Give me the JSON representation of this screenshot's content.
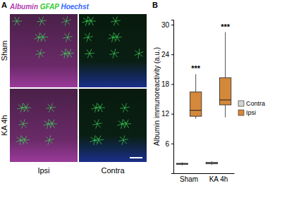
{
  "chart_data": {
    "type": "box",
    "y_label": "Albumin immunoreactivity (a.u.)",
    "categories": [
      "Sham",
      "KA 4h"
    ],
    "ylim": [
      0,
      31
    ],
    "yticks": [
      6,
      12,
      18,
      24,
      30
    ],
    "legend": "right",
    "series": [
      {
        "name": "Contra",
        "color": "#cfd6cf",
        "min": [
          1.6,
          1.7
        ],
        "q1": [
          1.8,
          1.9
        ],
        "median": [
          1.9,
          2.0
        ],
        "q3": [
          2.0,
          2.2
        ],
        "max": [
          2.2,
          2.4
        ]
      },
      {
        "name": "Ipsi",
        "color": "#d4883a",
        "min": [
          11.0,
          11.3
        ],
        "q1": [
          11.5,
          13.8
        ],
        "median": [
          12.7,
          14.8
        ],
        "q3": [
          16.4,
          19.3
        ],
        "max": [
          20.0,
          28.5
        ],
        "annotations": [
          "***",
          "***"
        ]
      }
    ]
  },
  "panel_a": {
    "label": "A",
    "chart_label": "B",
    "stains": [
      {
        "text": "Albumin",
        "color": "#b040b0"
      },
      {
        "text": "GFAP",
        "color": "#33cc33"
      },
      {
        "text": "Hoechst",
        "color": "#3366ff"
      }
    ],
    "rows": [
      "Sham",
      "KA 4h"
    ],
    "columns": [
      "Ipsi",
      "Contra"
    ]
  }
}
